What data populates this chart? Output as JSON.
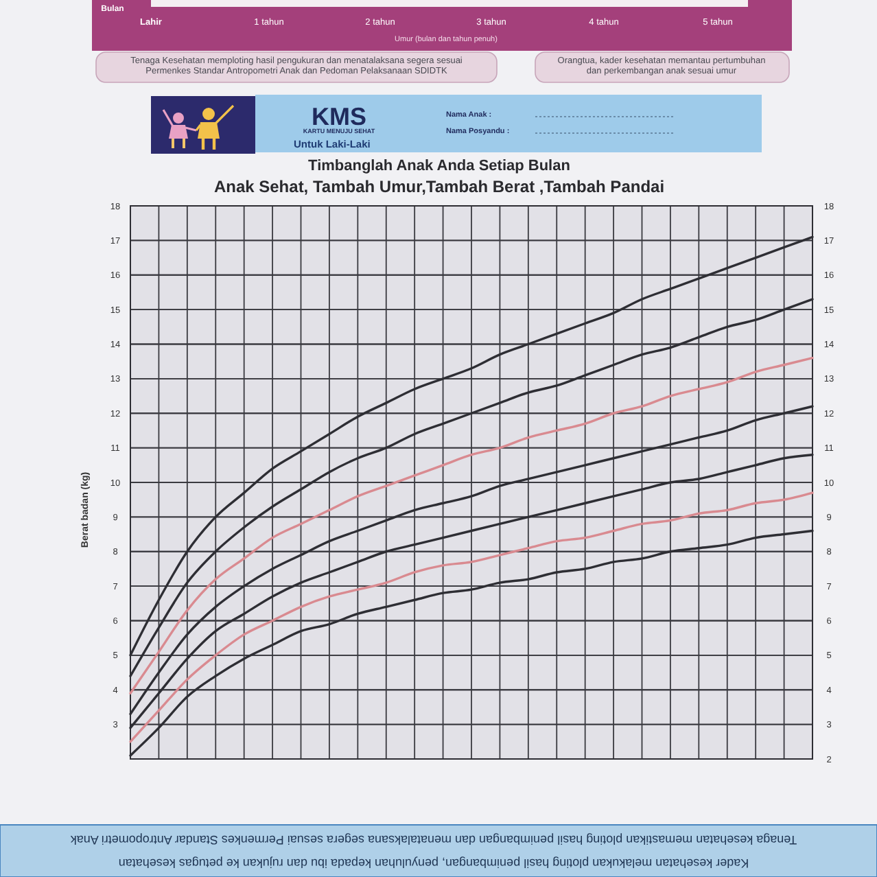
{
  "chart_data": {
    "type": "line",
    "title": "Timbanglah Anak Anda Setiap Bulan",
    "subtitle": "Anak Sehat, Tambah Umur,Tambah Berat ,Tambah Pandai",
    "ylabel": "Berat badan (kg)",
    "categories": [
      null,
      null,
      null,
      null,
      null,
      null,
      null,
      null,
      null,
      null,
      null,
      null,
      null,
      null,
      null,
      null,
      null,
      null,
      null,
      null,
      null,
      null,
      null,
      null,
      null
    ],
    "ylim": [
      2,
      18
    ],
    "yticks": [
      3,
      4,
      5,
      6,
      7,
      8,
      9,
      10,
      11,
      12,
      13,
      14,
      15,
      16,
      17,
      18
    ],
    "y2lim": [
      2,
      18
    ],
    "y2ticks": [
      2,
      3,
      4,
      5,
      6,
      7,
      8,
      9,
      10,
      11,
      12,
      13,
      14,
      15,
      16,
      17,
      18
    ],
    "grid": true,
    "series": [
      {
        "color": "#2e2e34",
        "values": [
          5.0,
          6.6,
          8.0,
          9.0,
          9.7,
          10.4,
          10.9,
          11.4,
          11.9,
          12.3,
          12.7,
          13.0,
          13.3,
          13.7,
          14.0,
          14.3,
          14.6,
          14.9,
          15.3,
          15.6,
          15.9,
          16.2,
          16.5,
          16.8,
          17.1
        ]
      },
      {
        "color": "#2e2e34",
        "values": [
          4.4,
          5.8,
          7.1,
          8.0,
          8.7,
          9.3,
          9.8,
          10.3,
          10.7,
          11.0,
          11.4,
          11.7,
          12.0,
          12.3,
          12.6,
          12.8,
          13.1,
          13.4,
          13.7,
          13.9,
          14.2,
          14.5,
          14.7,
          15.0,
          15.3
        ]
      },
      {
        "color": "#d98a90",
        "values": [
          3.9,
          5.1,
          6.3,
          7.2,
          7.8,
          8.4,
          8.8,
          9.2,
          9.6,
          9.9,
          10.2,
          10.5,
          10.8,
          11.0,
          11.3,
          11.5,
          11.7,
          12.0,
          12.2,
          12.5,
          12.7,
          12.9,
          13.2,
          13.4,
          13.6
        ]
      },
      {
        "color": "#2e2e34",
        "values": [
          3.3,
          4.5,
          5.6,
          6.4,
          7.0,
          7.5,
          7.9,
          8.3,
          8.6,
          8.9,
          9.2,
          9.4,
          9.6,
          9.9,
          10.1,
          10.3,
          10.5,
          10.7,
          10.9,
          11.1,
          11.3,
          11.5,
          11.8,
          12.0,
          12.2
        ]
      },
      {
        "color": "#2e2e34",
        "values": [
          2.9,
          3.9,
          4.9,
          5.7,
          6.2,
          6.7,
          7.1,
          7.4,
          7.7,
          8.0,
          8.2,
          8.4,
          8.6,
          8.8,
          9.0,
          9.2,
          9.4,
          9.6,
          9.8,
          10.0,
          10.1,
          10.3,
          10.5,
          10.7,
          10.8
        ]
      },
      {
        "color": "#d98a90",
        "values": [
          2.5,
          3.4,
          4.3,
          5.0,
          5.6,
          6.0,
          6.4,
          6.7,
          6.9,
          7.1,
          7.4,
          7.6,
          7.7,
          7.9,
          8.1,
          8.3,
          8.4,
          8.6,
          8.8,
          8.9,
          9.1,
          9.2,
          9.4,
          9.5,
          9.7
        ]
      },
      {
        "color": "#2e2e34",
        "values": [
          2.1,
          2.9,
          3.8,
          4.4,
          4.9,
          5.3,
          5.7,
          5.9,
          6.2,
          6.4,
          6.6,
          6.8,
          6.9,
          7.1,
          7.2,
          7.4,
          7.5,
          7.7,
          7.8,
          8.0,
          8.1,
          8.2,
          8.4,
          8.5,
          8.6
        ]
      }
    ],
    "annotations": [
      "Bulan",
      "Lahir",
      "1 tahun",
      "2 tahun",
      "3 tahun",
      "4 tahun",
      "5 tahun",
      "Umur (bulan dan tahun penuh)",
      "Tenaga Kesehatan memploting hasil pengukuran dan menatalaksana segera sesuai Permenkes Standar Antropometri Anak dan Pedoman Pelaksanaan SDIDTK",
      "Orangtua, kader kesehatan memantau pertumbuhan dan perkembangan anak sesuai umur",
      "KMS",
      "KARTU MENUJU SEHAT",
      "Untuk Laki-Laki",
      "Nama Anak :",
      "Nama Posyandu :",
      "Tenaga kesehatan memastikan ploting hasil penimbangan dan menatalaksana segera sesuai Permenkes Standar Antropometri Anak",
      "Kader kesehatan melakukan ploting hasil penimbangan, penyuluhan kepada ibu dan rujukan ke petugas kesehatan"
    ]
  }
}
